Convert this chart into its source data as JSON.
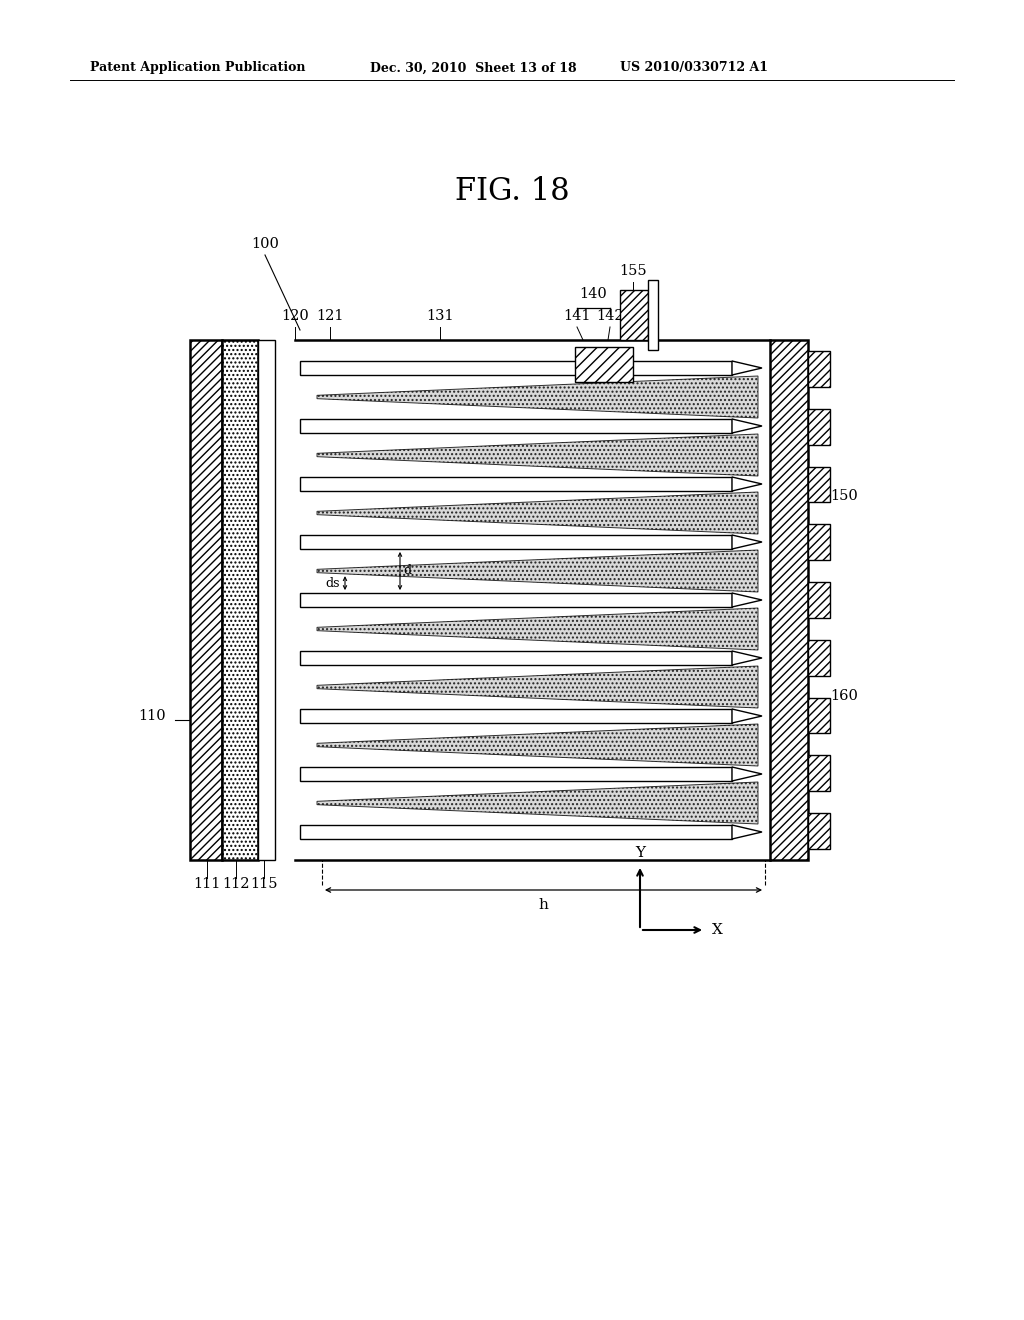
{
  "title": "FIG. 18",
  "header_left": "Patent Application Publication",
  "header_mid": "Dec. 30, 2010  Sheet 13 of 18",
  "header_right": "US 2010/0330712 A1",
  "bg_color": "#ffffff",
  "line_color": "#000000"
}
